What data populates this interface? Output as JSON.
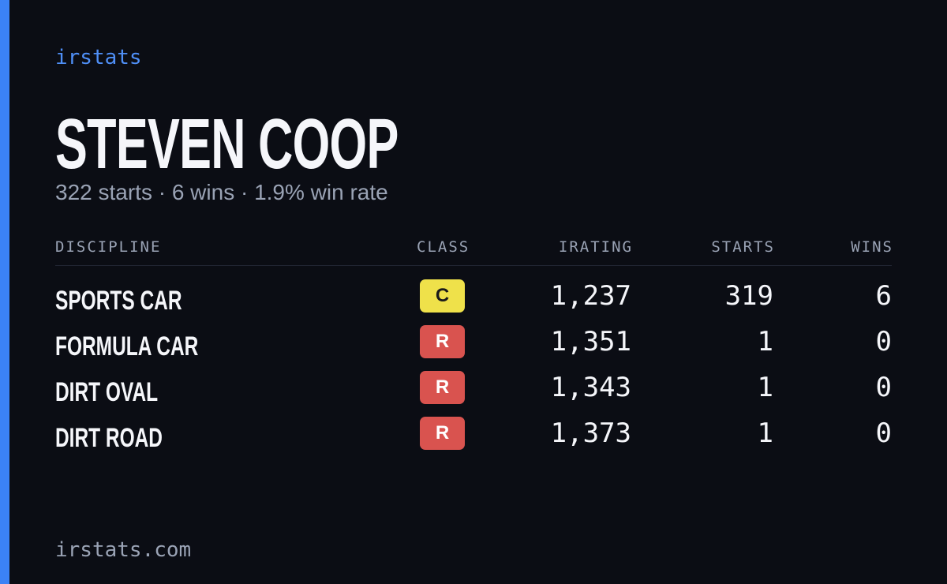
{
  "brand": "irstats",
  "profile": {
    "name": "STEVEN COOP",
    "summary": "322 starts · 6 wins · 1.9% win rate"
  },
  "table": {
    "headers": [
      "DISCIPLINE",
      "CLASS",
      "IRATING",
      "STARTS",
      "WINS"
    ],
    "rows": [
      [
        "SPORTS CAR",
        "C",
        "1,237",
        "319",
        "6"
      ],
      [
        "FORMULA CAR",
        "R",
        "1,351",
        "1",
        "0"
      ],
      [
        "DIRT OVAL",
        "R",
        "1,343",
        "1",
        "0"
      ],
      [
        "DIRT ROAD",
        "R",
        "1,373",
        "1",
        "0"
      ]
    ]
  },
  "footer": "irstats.com"
}
